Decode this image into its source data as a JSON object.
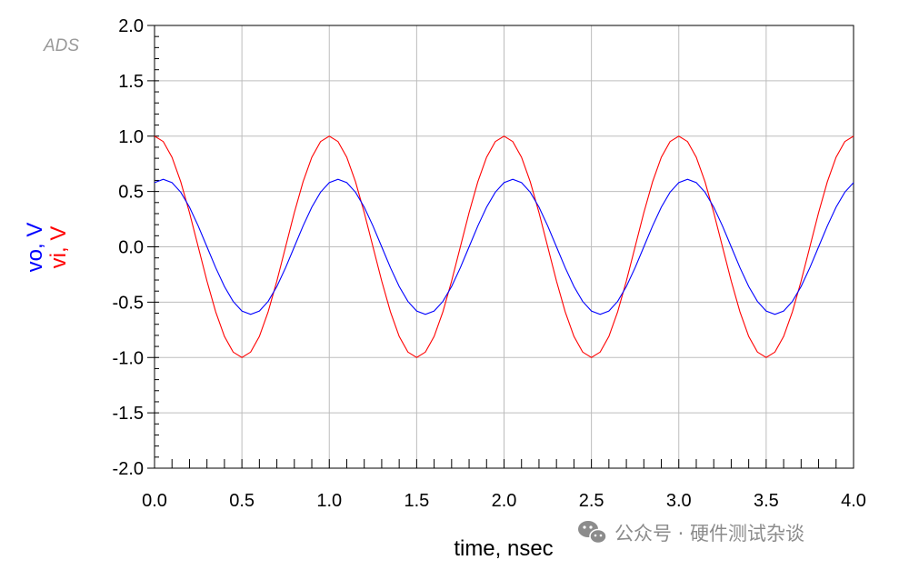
{
  "chart_data": {
    "type": "line",
    "brand_label": "ADS",
    "xlabel": "time, nsec",
    "ylabel_series": [
      {
        "text": "vo, V",
        "color": "#0000ff"
      },
      {
        "text": "vi, V",
        "color": "#ff0000"
      }
    ],
    "xlim": [
      0.0,
      4.0
    ],
    "ylim": [
      -2.0,
      2.0
    ],
    "x_ticks": [
      "0.0",
      "0.5",
      "1.0",
      "1.5",
      "2.0",
      "2.5",
      "3.0",
      "3.5",
      "4.0"
    ],
    "y_ticks": [
      "2.0",
      "1.5",
      "1.0",
      "0.5",
      "0.0",
      "-0.5",
      "-1.0",
      "-1.5",
      "-2.0"
    ],
    "grid": true,
    "series": [
      {
        "name": "vi",
        "color": "#ff0000",
        "amplitude": 1.0,
        "period_nsec": 1.0,
        "phase_deg": 0,
        "offset": 0.0
      },
      {
        "name": "vo",
        "color": "#0000ff",
        "amplitude": 0.61,
        "period_nsec": 1.0,
        "phase_deg": -18,
        "offset": 0.0
      }
    ]
  },
  "watermark": {
    "icon": "wechat-icon",
    "text": "公众号 · 硬件测试杂谈"
  }
}
